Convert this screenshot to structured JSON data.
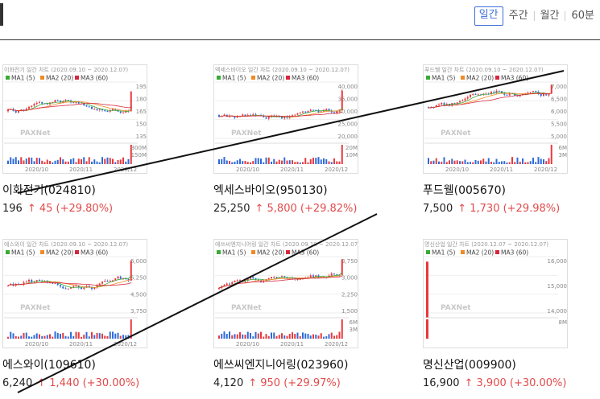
{
  "tabs": [
    {
      "label": "일간",
      "active": true
    },
    {
      "label": "주간",
      "active": false
    },
    {
      "label": "월간",
      "active": false
    },
    {
      "label": "60분",
      "active": false
    }
  ],
  "legend": [
    "MA1 (5)",
    "MA2 (20)",
    "MA3 (60)"
  ],
  "legend_colors": [
    "#3aaa35",
    "#f08a24",
    "#d9263c"
  ],
  "watermark": "PAXNet",
  "cards": [
    {
      "title": "이화전기 일간 차트 (2020.09.10 ~ 2020.12.07)",
      "name": "이화전기(024810)",
      "price": "196",
      "change": "↑ 45 (+29.80%)",
      "yticks": [
        "195",
        "180",
        "165",
        "150",
        "135"
      ],
      "vticks": [
        "300M",
        "150M"
      ],
      "xticks": [
        "2020/10",
        "2020/11",
        "2020/12"
      ]
    },
    {
      "title": "엑세스바이오 일간 차트 (2020.09.10 ~ 2020.12.07)",
      "name": "엑세스바이오(950130)",
      "price": "25,250",
      "change": "↑ 5,800 (+29.82%)",
      "yticks": [
        "40,000",
        "35,000",
        "30,000",
        "25,000",
        "20,000"
      ],
      "vticks": [
        "20M",
        "10M"
      ],
      "xticks": [
        "2020/10",
        "2020/11",
        "2020/12"
      ]
    },
    {
      "title": "푸드웰 일간 차트 (2020.09.10 ~ 2020.12.07)",
      "name": "푸드웰(005670)",
      "price": "7,500",
      "change": "↑ 1,730 (+29.98%)",
      "yticks": [
        "7,000",
        "6,500",
        "6,000",
        "5,500",
        "5,000"
      ],
      "vticks": [
        "6M",
        "3M"
      ],
      "xticks": [
        "2020/10",
        "2020/11",
        "2020/12"
      ]
    },
    {
      "title": "에스와이 일간 차트 (2020.09.10 ~ 2020.12.07)",
      "name": "에스와이(109610)",
      "price": "6,240",
      "change": "↑ 1,440 (+30.00%)",
      "yticks": [
        "6,000",
        "5,250",
        "4,500",
        "3,750"
      ],
      "vticks": [],
      "xticks": [
        "2020/10",
        "2020/11",
        "2020/12"
      ]
    },
    {
      "title": "에쓰씨엔지니어링 일간 차트 (2020.09.10 ~ 2020.12.07)",
      "name": "에쓰씨엔지니어링(023960)",
      "price": "4,120",
      "change": "↑ 950 (+29.97%)",
      "yticks": [
        "3,750",
        "3,000",
        "2,250",
        "1,500"
      ],
      "vticks": [
        "6M",
        "3M"
      ],
      "xticks": [
        "2020/10",
        "2020/11",
        "2020/12"
      ]
    },
    {
      "title": "명신산업 일간 차트 (2020.12.07 ~ 2020.12.07)",
      "name": "명신산업(009900)",
      "price": "16,900",
      "change": "↑ 3,900 (+30.00%)",
      "yticks": [
        "16,000",
        "15,000",
        "14,000"
      ],
      "vticks": [
        "8M"
      ],
      "xticks": []
    }
  ]
}
